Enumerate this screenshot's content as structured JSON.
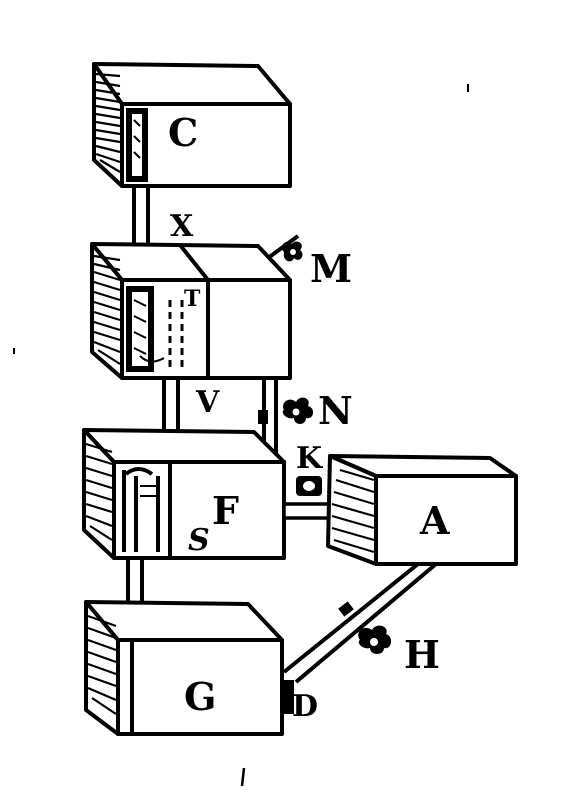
{
  "labels": {
    "C": "C",
    "X": "X",
    "M": "M",
    "T": "T",
    "V": "V",
    "N": "N",
    "K": "K",
    "F": "F",
    "S": "S",
    "A": "A",
    "G": "G",
    "H": "H",
    "D": "D"
  }
}
